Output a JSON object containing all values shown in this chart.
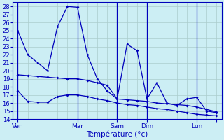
{
  "xlabel": "Température (°c)",
  "background_color": "#cceef4",
  "grid_color": "#aacccc",
  "line_color": "#0000bb",
  "ylim": [
    14,
    28.5
  ],
  "xlim": [
    -0.5,
    20.5
  ],
  "yticks": [
    14,
    15,
    16,
    17,
    18,
    19,
    20,
    21,
    22,
    23,
    24,
    25,
    26,
    27,
    28
  ],
  "day_positions": [
    0,
    6,
    10,
    13,
    18,
    20
  ],
  "day_labels": [
    "Ven",
    "Mar",
    "Sam",
    "Dim",
    "Lun"
  ],
  "vline_positions": [
    0,
    6,
    10,
    13,
    18
  ],
  "x": [
    0,
    1,
    2,
    3,
    4,
    5,
    6,
    7,
    8,
    9,
    10,
    11,
    12,
    13,
    14,
    15,
    16,
    17,
    18,
    19,
    20
  ],
  "high": [
    25,
    22,
    21,
    20,
    25.5,
    28,
    27.9,
    22,
    19,
    17.5,
    16.5,
    23.3,
    22.5,
    16.5,
    18.5,
    16,
    15.7,
    16.5,
    16.7,
    15,
    14.8
  ],
  "mid": [
    19.5,
    19.4,
    19.3,
    19.2,
    19.1,
    19.0,
    19.0,
    18.8,
    18.5,
    18.2,
    16.5,
    16.4,
    16.3,
    16.2,
    16.0,
    15.9,
    15.8,
    15.7,
    15.5,
    15.2,
    14.9
  ],
  "low": [
    17.5,
    16.2,
    16.1,
    16.1,
    16.8,
    17.0,
    17.0,
    16.8,
    16.5,
    16.3,
    16.0,
    15.8,
    15.7,
    15.5,
    15.3,
    15.2,
    15.0,
    14.8,
    14.6,
    14.5,
    14.4
  ]
}
